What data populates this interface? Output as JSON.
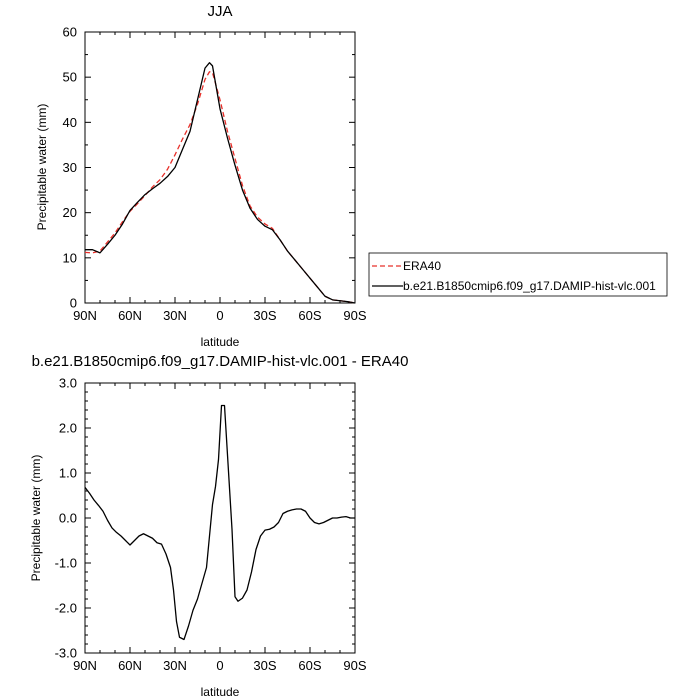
{
  "chart_data": [
    {
      "type": "line",
      "title": "JJA",
      "xlabel": "latitude",
      "ylabel": "Precipitable water (mm)",
      "x_ticks": [
        "90N",
        "60N",
        "30N",
        "0",
        "30S",
        "60S",
        "90S"
      ],
      "y_ticks": [
        "0",
        "10",
        "20",
        "30",
        "40",
        "50",
        "60"
      ],
      "xlim": [
        90,
        -90
      ],
      "ylim": [
        0,
        60
      ],
      "grid": false,
      "legend": "right",
      "colors": {
        "ERA40": "#e8302a",
        "model": "#000000"
      },
      "series": [
        {
          "name": "ERA40",
          "style": "dashed",
          "x": [
            90,
            85,
            80,
            75,
            70,
            65,
            60,
            55,
            50,
            45,
            40,
            35,
            30,
            25,
            20,
            15,
            10,
            7,
            5,
            0,
            -5,
            -10,
            -15,
            -20,
            -25,
            -30,
            -35,
            -40,
            -45,
            -50,
            -55,
            -60,
            -65,
            -70,
            -75,
            -80,
            -85,
            -90
          ],
          "y": [
            11.2,
            11.1,
            11.5,
            13.5,
            15.5,
            18.0,
            20.3,
            22.0,
            23.8,
            25.7,
            27.3,
            29.6,
            32.8,
            36.3,
            39.5,
            44.0,
            49.5,
            51.2,
            51.0,
            45.0,
            38.0,
            32.0,
            26.0,
            21.5,
            19.0,
            17.5,
            16.5,
            14.0,
            11.5,
            9.5,
            7.5,
            5.5,
            3.5,
            1.5,
            0.7,
            0.5,
            0.3,
            0.0
          ]
        },
        {
          "name": "b.e21.B1850cmip6.f09_g17.DAMIP-hist-vlc.001",
          "style": "solid",
          "x": [
            90,
            85,
            80,
            75,
            70,
            65,
            60,
            55,
            50,
            45,
            40,
            35,
            30,
            25,
            20,
            15,
            10,
            7,
            5,
            0,
            -5,
            -10,
            -15,
            -20,
            -25,
            -30,
            -35,
            -40,
            -45,
            -50,
            -55,
            -60,
            -65,
            -70,
            -75,
            -80,
            -85,
            -90
          ],
          "y": [
            11.8,
            11.8,
            11.1,
            13.0,
            15.0,
            17.5,
            20.5,
            22.3,
            24.0,
            25.3,
            26.5,
            28.0,
            30.0,
            34.0,
            38.0,
            45.0,
            52.0,
            53.2,
            52.5,
            43.0,
            36.5,
            30.5,
            25.0,
            21.0,
            18.5,
            17.0,
            16.2,
            14.0,
            11.5,
            9.5,
            7.5,
            5.5,
            3.5,
            1.5,
            0.7,
            0.5,
            0.3,
            0.0
          ]
        }
      ]
    },
    {
      "type": "line",
      "title": "b.e21.B1850cmip6.f09_g17.DAMIP-hist-vlc.001 - ERA40",
      "xlabel": "latitude",
      "ylabel": "Precipitable water (mm)",
      "x_ticks": [
        "90N",
        "60N",
        "30N",
        "0",
        "30S",
        "60S",
        "90S"
      ],
      "y_ticks": [
        "-3.0",
        "-2.0",
        "-1.0",
        "0.0",
        "1.0",
        "2.0",
        "3.0"
      ],
      "xlim": [
        90,
        -90
      ],
      "ylim": [
        -3,
        3
      ],
      "grid": false,
      "colors": {
        "diff": "#000000"
      },
      "series": [
        {
          "style": "solid",
          "x": [
            90,
            87,
            84,
            81,
            78,
            75,
            72,
            69,
            66,
            63,
            60,
            57,
            54,
            51,
            48,
            45,
            42,
            39,
            36,
            33,
            31,
            29,
            27,
            24,
            21,
            18,
            15,
            12,
            9,
            7,
            5,
            3,
            1,
            -1,
            -3,
            -5,
            -8,
            -10,
            -12,
            -15,
            -18,
            -21,
            -24,
            -27,
            -30,
            -33,
            -36,
            -39,
            -42,
            -45,
            -48,
            -51,
            -54,
            -57,
            -60,
            -63,
            -66,
            -69,
            -72,
            -75,
            -78,
            -81,
            -84,
            -87,
            -90
          ],
          "y": [
            0.68,
            0.55,
            0.4,
            0.28,
            0.15,
            -0.05,
            -0.22,
            -0.32,
            -0.4,
            -0.5,
            -0.6,
            -0.5,
            -0.4,
            -0.35,
            -0.4,
            -0.45,
            -0.55,
            -0.58,
            -0.8,
            -1.1,
            -1.6,
            -2.3,
            -2.65,
            -2.7,
            -2.4,
            -2.05,
            -1.8,
            -1.45,
            -1.1,
            -0.4,
            0.3,
            0.7,
            1.3,
            2.5,
            2.5,
            1.4,
            -0.25,
            -1.75,
            -1.85,
            -1.78,
            -1.6,
            -1.2,
            -0.7,
            -0.4,
            -0.27,
            -0.25,
            -0.2,
            -0.1,
            0.1,
            0.15,
            0.18,
            0.2,
            0.2,
            0.15,
            0.0,
            -0.1,
            -0.13,
            -0.1,
            -0.05,
            0.0,
            0.0,
            0.02,
            0.03,
            0.0,
            0.0
          ]
        }
      ]
    }
  ]
}
